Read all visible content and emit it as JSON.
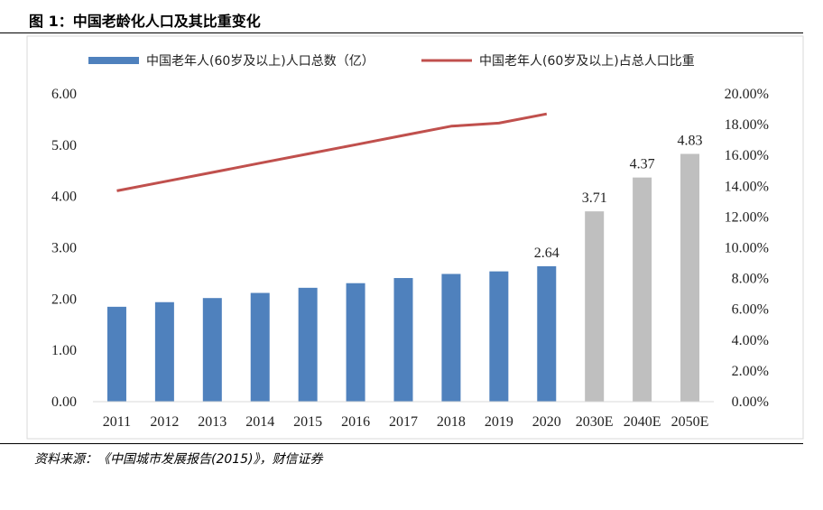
{
  "figure_title": "图 1：中国老龄化人口及其比重变化",
  "source": "资料来源：《中国城市发展报告(2015)》，财信证券",
  "colors": {
    "actual_bar": "#4F81BD",
    "forecast_bar": "#BFBFBF",
    "ratio_line": "#C0504D"
  },
  "chart_data": {
    "type": "bar",
    "categories": [
      "2011",
      "2012",
      "2013",
      "2014",
      "2015",
      "2016",
      "2017",
      "2018",
      "2019",
      "2020",
      "2030E",
      "2040E",
      "2050E"
    ],
    "series": [
      {
        "name": "中国老年人(60岁及以上)人口总数（亿）",
        "type": "bar",
        "axis": "left",
        "values": [
          1.85,
          1.94,
          2.02,
          2.12,
          2.22,
          2.31,
          2.41,
          2.49,
          2.54,
          2.64,
          3.71,
          4.37,
          4.83
        ],
        "forecast_from_index": 10
      },
      {
        "name": "中国老年人(60岁及以上)占总人口比重",
        "type": "line",
        "axis": "right",
        "values": [
          13.7,
          14.3,
          14.9,
          15.5,
          16.1,
          16.7,
          17.3,
          17.9,
          18.1,
          18.7,
          null,
          null,
          null
        ]
      }
    ],
    "data_labels": [
      {
        "index": 9,
        "text": "2.64"
      },
      {
        "index": 10,
        "text": "3.71"
      },
      {
        "index": 11,
        "text": "4.37"
      },
      {
        "index": 12,
        "text": "4.83"
      }
    ],
    "y_left": {
      "min": 0,
      "max": 6,
      "ticks": [
        "0.00",
        "1.00",
        "2.00",
        "3.00",
        "4.00",
        "5.00",
        "6.00"
      ]
    },
    "y_right": {
      "min": 0,
      "max": 20,
      "ticks": [
        "0.00%",
        "2.00%",
        "4.00%",
        "6.00%",
        "8.00%",
        "10.00%",
        "12.00%",
        "14.00%",
        "16.00%",
        "18.00%",
        "20.00%"
      ]
    },
    "legend_position": "top",
    "grid": false
  }
}
